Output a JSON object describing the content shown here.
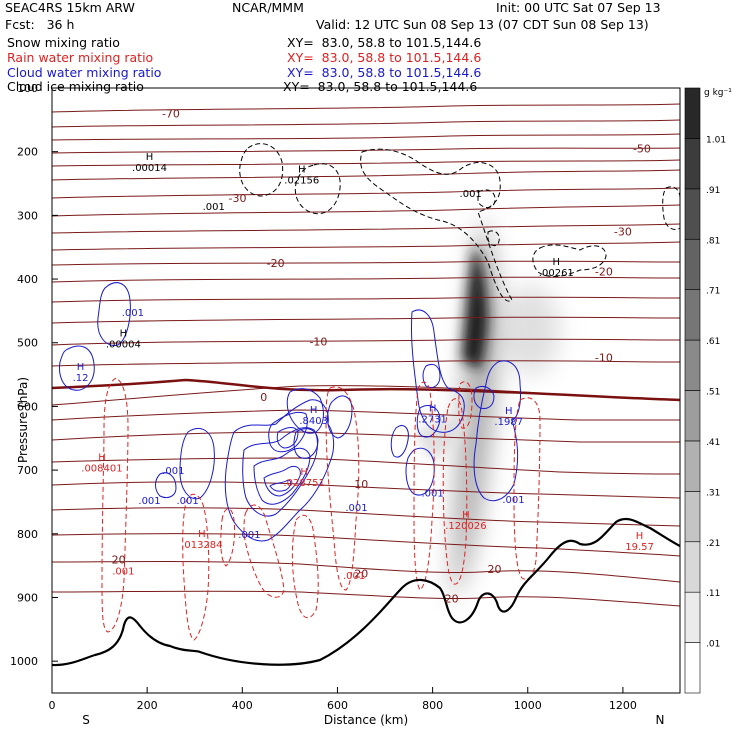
{
  "header": {
    "model": "SEAC4RS 15km ARW",
    "org": "NCAR/MMM",
    "init": "Init: 00 UTC Sat 07 Sep 13",
    "fcst": "Fcst:   36 h",
    "valid": "Valid: 12 UTC Sun 08 Sep 13 (07 CDT Sun 08 Sep 13)",
    "fields": [
      {
        "label": "Snow mixing ratio",
        "xy": "XY=  83.0, 58.8 to 101.5,144.6",
        "color": "#000000"
      },
      {
        "label": "Rain water mixing ratio",
        "xy": "XY=  83.0, 58.8 to 101.5,144.6",
        "color": "#dd2222"
      },
      {
        "label": "Cloud water mixing ratio",
        "xy": "XY=  83.0, 58.8 to 101.5,144.6",
        "color": "#1a1acc"
      },
      {
        "label": "Cloud ice mixing ratio",
        "xy": "XY=  83.0, 58.8 to 101.5,144.6",
        "color": "#000000"
      }
    ]
  },
  "chart_data": {
    "type": "cross-section",
    "xlabel": "Distance (km)",
    "ylabel": "Pressure (hPa)",
    "xlim": [
      0,
      1320
    ],
    "ylim": [
      1050,
      100
    ],
    "x_ticks": [
      0,
      200,
      400,
      600,
      800,
      1000,
      1200
    ],
    "y_ticks": [
      100,
      200,
      300,
      400,
      500,
      600,
      700,
      800,
      900,
      1000
    ],
    "x_end_labels": {
      "left": "S",
      "right": "N"
    },
    "colorbar": {
      "unit": "g kg⁻¹",
      "levels": [
        ".01",
        ".11",
        ".21",
        ".31",
        ".41",
        ".51",
        ".61",
        ".71",
        ".81",
        ".91",
        "1.01"
      ]
    },
    "temperature_labels": [
      {
        "x": 250,
        "p": 140,
        "text": "-70"
      },
      {
        "x": 1240,
        "p": 195,
        "text": "-50"
      },
      {
        "x": 390,
        "p": 273,
        "text": "-30"
      },
      {
        "x": 1200,
        "p": 325,
        "text": "-30"
      },
      {
        "x": 470,
        "p": 375,
        "text": "-20"
      },
      {
        "x": 1160,
        "p": 388,
        "text": "-20"
      },
      {
        "x": 560,
        "p": 498,
        "text": "-10"
      },
      {
        "x": 1160,
        "p": 523,
        "text": "-10"
      },
      {
        "x": 445,
        "p": 585,
        "text": "0"
      },
      {
        "x": 650,
        "p": 722,
        "text": "10"
      },
      {
        "x": 140,
        "p": 840,
        "text": "20"
      },
      {
        "x": 650,
        "p": 862,
        "text": "20"
      },
      {
        "x": 930,
        "p": 855,
        "text": "20"
      },
      {
        "x": 840,
        "p": 902,
        "text": "20"
      }
    ],
    "extrema_labels": [
      {
        "x": 205,
        "p": 213,
        "text": "H",
        "value": ".00014",
        "color": "#000000"
      },
      {
        "x": 525,
        "p": 233,
        "text": "H",
        "value": ".02156",
        "color": "#000000"
      },
      {
        "x": 1060,
        "p": 378,
        "text": "H",
        "value": ".00261",
        "color": "#000000"
      },
      {
        "x": 150,
        "p": 490,
        "text": "H",
        "value": ".00004",
        "color": "#000000"
      },
      {
        "x": 60,
        "p": 543,
        "text": "H",
        "value": ".12",
        "color": "#1a1acc"
      },
      {
        "x": 550,
        "p": 610,
        "text": "H",
        "value": ".8403",
        "color": "#1a1acc"
      },
      {
        "x": 800,
        "p": 608,
        "text": "H",
        "value": ".2731",
        "color": "#1a1acc"
      },
      {
        "x": 960,
        "p": 612,
        "text": "H",
        "value": ".1987",
        "color": "#1a1acc"
      },
      {
        "x": 105,
        "p": 685,
        "text": "H",
        "value": ".008401",
        "color": "#dd2222"
      },
      {
        "x": 530,
        "p": 708,
        "text": "H",
        "value": ".028751",
        "color": "#dd2222"
      },
      {
        "x": 315,
        "p": 805,
        "text": "H",
        "value": ".013284",
        "color": "#dd2222"
      },
      {
        "x": 870,
        "p": 775,
        "text": "H",
        "value": ".120026",
        "color": "#dd2222"
      },
      {
        "x": 1235,
        "p": 808,
        "text": "H",
        "value": "19.57",
        "color": "#dd2222"
      }
    ],
    "contour_value_labels": [
      {
        "x": 340,
        "p": 285,
        "text": ".001",
        "color": "#000000"
      },
      {
        "x": 880,
        "p": 265,
        "text": ".001",
        "color": "#000000"
      },
      {
        "x": 170,
        "p": 452,
        "text": ".001",
        "color": "#1a1acc"
      },
      {
        "x": 255,
        "p": 700,
        "text": ".001",
        "color": "#1a1acc"
      },
      {
        "x": 205,
        "p": 747,
        "text": ".001",
        "color": "#1a1acc"
      },
      {
        "x": 285,
        "p": 747,
        "text": ".001",
        "color": "#1a1acc"
      },
      {
        "x": 415,
        "p": 800,
        "text": ".001",
        "color": "#1a1acc"
      },
      {
        "x": 640,
        "p": 758,
        "text": ".001",
        "color": "#1a1acc"
      },
      {
        "x": 800,
        "p": 735,
        "text": ".001",
        "color": "#1a1acc"
      },
      {
        "x": 970,
        "p": 745,
        "text": ".001",
        "color": "#1a1acc"
      },
      {
        "x": 150,
        "p": 858,
        "text": ".001",
        "color": "#dd2222"
      },
      {
        "x": 635,
        "p": 865,
        "text": ".001",
        "color": "#dd2222"
      }
    ]
  }
}
